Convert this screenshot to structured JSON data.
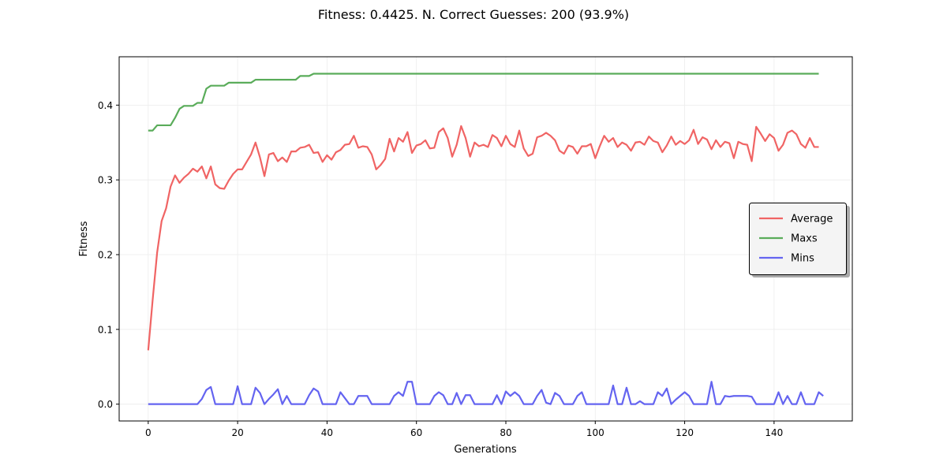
{
  "chart_data": {
    "type": "line",
    "title": "Fitness: 0.4425. N. Correct Guesses: 200 (93.9%)",
    "xlabel": "Generations",
    "ylabel": "Fitness",
    "xlim": [
      -6.5,
      157.5
    ],
    "ylim": [
      -0.0225,
      0.4647
    ],
    "xticks": [
      0,
      20,
      40,
      60,
      80,
      100,
      120,
      140
    ],
    "yticks": [
      0.0,
      0.1,
      0.2,
      0.3,
      0.4
    ],
    "xtick_labels": [
      "0",
      "20",
      "40",
      "60",
      "80",
      "100",
      "120",
      "140"
    ],
    "ytick_labels": [
      "0.0",
      "0.1",
      "0.2",
      "0.3",
      "0.4"
    ],
    "grid": true,
    "legend_placement": "center-right",
    "series": [
      {
        "name": "Average",
        "color": "#f06464",
        "values": [
          0.072,
          0.14,
          0.203,
          0.245,
          0.262,
          0.291,
          0.306,
          0.296,
          0.303,
          0.308,
          0.315,
          0.311,
          0.318,
          0.302,
          0.318,
          0.294,
          0.289,
          0.288,
          0.299,
          0.308,
          0.314,
          0.314,
          0.324,
          0.334,
          0.35,
          0.33,
          0.305,
          0.334,
          0.336,
          0.325,
          0.33,
          0.324,
          0.338,
          0.338,
          0.343,
          0.344,
          0.347,
          0.336,
          0.337,
          0.324,
          0.333,
          0.327,
          0.337,
          0.34,
          0.347,
          0.348,
          0.359,
          0.343,
          0.345,
          0.344,
          0.334,
          0.314,
          0.32,
          0.328,
          0.355,
          0.338,
          0.356,
          0.351,
          0.364,
          0.336,
          0.346,
          0.348,
          0.353,
          0.342,
          0.343,
          0.364,
          0.369,
          0.356,
          0.331,
          0.347,
          0.372,
          0.356,
          0.331,
          0.35,
          0.345,
          0.347,
          0.344,
          0.36,
          0.356,
          0.345,
          0.359,
          0.348,
          0.344,
          0.366,
          0.342,
          0.332,
          0.335,
          0.357,
          0.359,
          0.363,
          0.359,
          0.353,
          0.339,
          0.335,
          0.346,
          0.344,
          0.335,
          0.345,
          0.345,
          0.348,
          0.329,
          0.345,
          0.359,
          0.351,
          0.356,
          0.344,
          0.35,
          0.347,
          0.339,
          0.35,
          0.351,
          0.347,
          0.358,
          0.352,
          0.35,
          0.337,
          0.346,
          0.358,
          0.347,
          0.352,
          0.348,
          0.353,
          0.367,
          0.348,
          0.357,
          0.354,
          0.341,
          0.353,
          0.344,
          0.351,
          0.349,
          0.329,
          0.351,
          0.348,
          0.347,
          0.325,
          0.371,
          0.362,
          0.352,
          0.361,
          0.356,
          0.339,
          0.347,
          0.363,
          0.366,
          0.361,
          0.348,
          0.343,
          0.356,
          0.344,
          0.344
        ]
      },
      {
        "name": "Maxs",
        "color": "#5aac5a",
        "values": [
          0.366,
          0.366,
          0.373,
          0.373,
          0.373,
          0.373,
          0.383,
          0.395,
          0.399,
          0.399,
          0.399,
          0.403,
          0.403,
          0.422,
          0.426,
          0.426,
          0.426,
          0.426,
          0.43,
          0.43,
          0.43,
          0.43,
          0.43,
          0.43,
          0.434,
          0.434,
          0.434,
          0.434,
          0.434,
          0.434,
          0.434,
          0.434,
          0.434,
          0.434,
          0.439,
          0.439,
          0.439,
          0.442,
          0.442,
          0.442,
          0.442,
          0.442,
          0.442,
          0.442,
          0.442,
          0.442,
          0.442,
          0.442,
          0.442,
          0.442,
          0.442,
          0.442,
          0.442,
          0.442,
          0.442,
          0.442,
          0.442,
          0.442,
          0.442,
          0.442,
          0.442,
          0.442,
          0.442,
          0.442,
          0.442,
          0.442,
          0.442,
          0.442,
          0.442,
          0.442,
          0.442,
          0.442,
          0.442,
          0.442,
          0.442,
          0.442,
          0.442,
          0.442,
          0.442,
          0.442,
          0.442,
          0.442,
          0.442,
          0.442,
          0.442,
          0.442,
          0.442,
          0.442,
          0.442,
          0.442,
          0.442,
          0.442,
          0.442,
          0.442,
          0.442,
          0.442,
          0.442,
          0.442,
          0.442,
          0.442,
          0.442,
          0.442,
          0.442,
          0.442,
          0.442,
          0.442,
          0.442,
          0.442,
          0.442,
          0.442,
          0.442,
          0.442,
          0.442,
          0.442,
          0.442,
          0.442,
          0.442,
          0.442,
          0.442,
          0.442,
          0.442,
          0.442,
          0.442,
          0.442,
          0.442,
          0.442,
          0.442,
          0.442,
          0.442,
          0.442,
          0.442,
          0.442,
          0.442,
          0.442,
          0.442,
          0.442,
          0.442,
          0.442,
          0.442,
          0.442,
          0.442,
          0.442,
          0.442,
          0.442,
          0.442,
          0.442,
          0.442,
          0.442,
          0.442,
          0.442,
          0.442
        ]
      },
      {
        "name": "Mins",
        "color": "#6464f0",
        "values": [
          0.0,
          0.0,
          0.0,
          0.0,
          0.0,
          0.0,
          0.0,
          0.0,
          0.0,
          0.0,
          0.0,
          0.0,
          0.007,
          0.019,
          0.023,
          0.0,
          0.0,
          0.0,
          0.0,
          0.0,
          0.024,
          0.0,
          0.0,
          0.0,
          0.022,
          0.015,
          0.0,
          0.007,
          0.013,
          0.02,
          0.0,
          0.011,
          0.0,
          0.0,
          0.0,
          0.0,
          0.012,
          0.021,
          0.017,
          0.0,
          0.0,
          0.0,
          0.0,
          0.016,
          0.008,
          0.0,
          0.0,
          0.011,
          0.011,
          0.011,
          0.0,
          0.0,
          0.0,
          0.0,
          0.0,
          0.011,
          0.016,
          0.011,
          0.03,
          0.03,
          0.0,
          0.0,
          0.0,
          0.0,
          0.011,
          0.016,
          0.012,
          0.0,
          0.0,
          0.015,
          0.0,
          0.012,
          0.012,
          0.0,
          0.0,
          0.0,
          0.0,
          0.0,
          0.012,
          0.0,
          0.017,
          0.011,
          0.016,
          0.011,
          0.0,
          0.0,
          0.0,
          0.011,
          0.019,
          0.002,
          0.0,
          0.015,
          0.011,
          0.0,
          0.0,
          0.0,
          0.011,
          0.016,
          0.0,
          0.0,
          0.0,
          0.0,
          0.0,
          0.0,
          0.025,
          0.0,
          0.0,
          0.022,
          0.0,
          0.0,
          0.004,
          0.0,
          0.0,
          0.0,
          0.016,
          0.011,
          0.021,
          0.0,
          0.006,
          0.011,
          0.016,
          0.011,
          0.0,
          0.0,
          0.0,
          0.0,
          0.03,
          0.0,
          0.0,
          0.011,
          0.01,
          0.011,
          0.011,
          0.011,
          0.011,
          0.01,
          0.0,
          0.0,
          0.0,
          0.0,
          0.0,
          0.016,
          0.0,
          0.011,
          0.0,
          0.0,
          0.016,
          0.0,
          0.0,
          0.0,
          0.016,
          0.011
        ]
      }
    ]
  }
}
